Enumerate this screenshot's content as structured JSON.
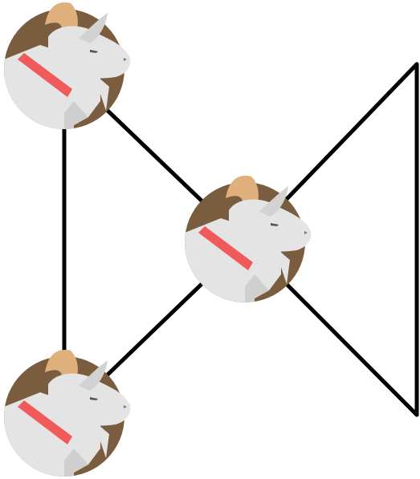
{
  "diagram": {
    "type": "graph",
    "node_icon": "goat-head-icon",
    "colors": {
      "background": "#ffffff",
      "edge": "#000000",
      "badge": "#7a5c3e",
      "goat_face": "#e4e4e4",
      "goat_shade": "#c8c8c8",
      "horn": "#e0b07c",
      "collar": "#f05a5a",
      "eye": "#555555"
    },
    "nodes": [
      {
        "id": "goat-top-left"
      },
      {
        "id": "goat-center"
      },
      {
        "id": "goat-bottom-left"
      }
    ],
    "edges": [
      {
        "from": "goat-top-left",
        "to": "goat-bottom-left"
      },
      {
        "from": "goat-top-left",
        "to": "goat-center"
      },
      {
        "from": "goat-bottom-left",
        "to": "goat-center"
      },
      {
        "from": "goat-center",
        "to": "open-top-right"
      },
      {
        "from": "goat-center",
        "to": "open-bottom-right"
      },
      {
        "from": "open-top-right",
        "to": "open-bottom-right"
      }
    ]
  }
}
